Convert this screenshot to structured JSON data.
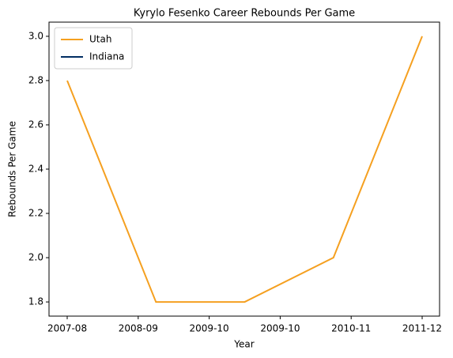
{
  "chart_data": {
    "type": "line",
    "title": "Kyrylo Fesenko Career Rebounds Per Game",
    "x_label": "Year",
    "y_label": "Rebounds Per Game",
    "x": [
      0,
      1,
      2,
      3,
      4
    ],
    "series": [
      {
        "name": "Utah",
        "color": "#f5a020",
        "values": [
          2.8,
          1.8,
          1.8,
          2.0,
          3.0
        ]
      },
      {
        "name": "Indiana",
        "color": "#002d62",
        "values": [
          null,
          null,
          null,
          null,
          null
        ]
      }
    ],
    "xlim": [
      -0.205,
      4.196
    ],
    "xticks": [
      {
        "value": 0,
        "label": "2007-08"
      },
      {
        "value": 0.8,
        "label": "2008-09"
      },
      {
        "value": 1.6,
        "label": "2009-10"
      },
      {
        "value": 2.4,
        "label": "2009-10"
      },
      {
        "value": 3.2,
        "label": "2010-11"
      },
      {
        "value": 4,
        "label": "2011-12"
      }
    ],
    "ylim": [
      1.736,
      3.064
    ],
    "yticks": [
      1.8,
      {
        "value": 2,
        "label": "2.0"
      },
      2.2,
      2.4,
      2.6,
      2.8,
      {
        "value": 3,
        "label": "3.0"
      }
    ],
    "legend": "upper left"
  }
}
